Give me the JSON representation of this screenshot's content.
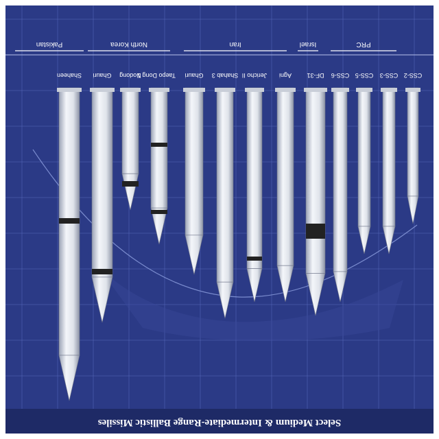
{
  "title": "Select Medium & Intermediate-Range Ballistic Missiles",
  "groups": [
    {
      "label": "PRC"
    },
    {
      "label": "Israel"
    },
    {
      "label": "Iran"
    },
    {
      "label": "North Korea"
    },
    {
      "label": "Pakistan"
    }
  ],
  "missiles": [
    {
      "label": "CSS-2"
    },
    {
      "label": "CSS-3"
    },
    {
      "label": "CSS-5"
    },
    {
      "label": "CSS-6"
    },
    {
      "label": "DF-31"
    },
    {
      "label": "Agni"
    },
    {
      "label": "Jericho II"
    },
    {
      "label": "Shahab 3"
    },
    {
      "label": "Ghauri"
    },
    {
      "label": "Taepo Dong 1"
    },
    {
      "label": "Nodong"
    },
    {
      "label": "Ghauri"
    },
    {
      "label": "Shaheen"
    }
  ],
  "colors": {
    "background": "#2b3a86",
    "grid": "#5c6fc0",
    "missile_body": "#e6e9ef",
    "band": "#222222"
  }
}
